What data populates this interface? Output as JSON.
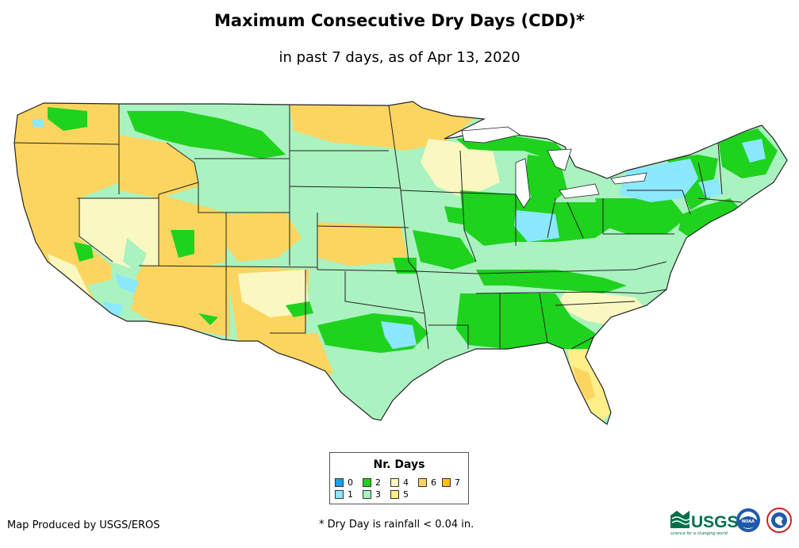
{
  "title": "Maximum Consecutive Dry Days (CDD)*",
  "subtitle": "in past 7 days, as of Apr 13, 2020",
  "legend": {
    "title": "Nr. Days",
    "items": [
      {
        "label": "0",
        "color": "#1a9ee8"
      },
      {
        "label": "1",
        "color": "#8be8ff"
      },
      {
        "label": "2",
        "color": "#1ed21e"
      },
      {
        "label": "3",
        "color": "#aaf2c0"
      },
      {
        "label": "4",
        "color": "#f8f8c0"
      },
      {
        "label": "5",
        "color": "#ffee8a"
      },
      {
        "label": "6",
        "color": "#fcd560"
      },
      {
        "label": "7",
        "color": "#f9c100"
      }
    ]
  },
  "credit": "Map Produced by USGS/EROS",
  "footnote": "* Dry Day is rainfall < 0.04 in.",
  "logos": {
    "usgs": "USGS",
    "usgs_tagline": "science for a changing world",
    "noaa": "NOAA"
  }
}
